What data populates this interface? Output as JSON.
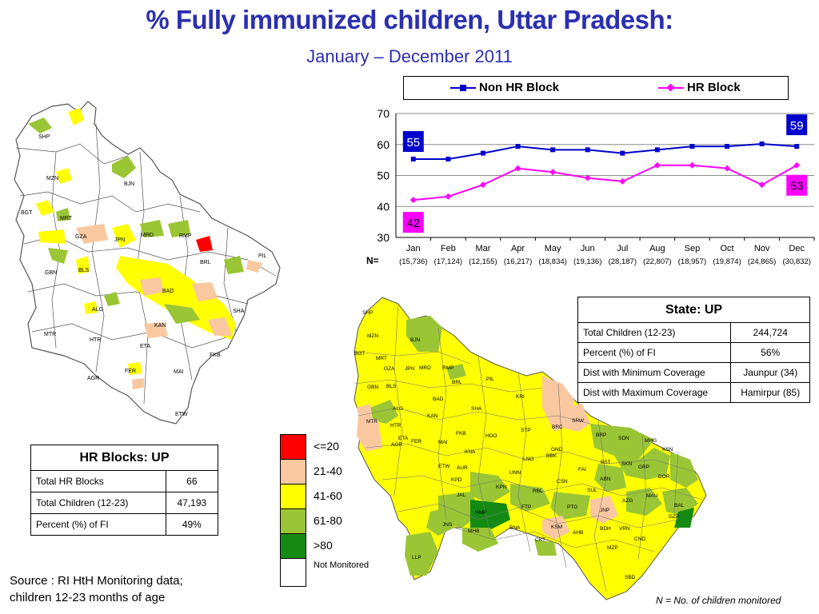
{
  "header": {
    "title": "% Fully immunized children, Uttar Pradesh:",
    "subtitle": "January – December 2011"
  },
  "chart_data": {
    "type": "line",
    "categories": [
      "Jan",
      "Feb",
      "Mar",
      "Apr",
      "May",
      "Jun",
      "Jul",
      "Aug",
      "Sep",
      "Oct",
      "Nov",
      "Dec"
    ],
    "series": [
      {
        "name": "Non HR Block",
        "color": "#0000cc",
        "values": [
          55.3,
          55.3,
          57.2,
          59.4,
          58.3,
          58.3,
          57.2,
          58.3,
          59.4,
          59.4,
          60.2,
          59.4
        ]
      },
      {
        "name": "HR Block",
        "color": "#ff00ff",
        "values": [
          42.1,
          43.2,
          47.0,
          52.3,
          51.1,
          49.2,
          48.1,
          53.3,
          53.3,
          52.3,
          47.0,
          53.3
        ]
      }
    ],
    "ylim": [
      30,
      70
    ],
    "yticks": [
      "30",
      "40",
      "50",
      "60",
      "70"
    ],
    "grid": true,
    "legend": "top",
    "annotations": {
      "non_hr_first": "55",
      "non_hr_last": "59",
      "hr_first": "42",
      "hr_last": "53"
    },
    "n_label": "N=",
    "n_values": [
      "(15,736)",
      "(17,124)",
      "(12,155)",
      "(16,217)",
      "(18,834)",
      "(19,136)",
      "(28,187)",
      "(22,807)",
      "(18,957)",
      "(19,874)",
      "(24,865)",
      "(30,832)"
    ]
  },
  "state_table": {
    "title": "State: UP",
    "rows": [
      {
        "label": "Total Children (12-23)",
        "value": "244,724"
      },
      {
        "label": "Percent (%) of  FI",
        "value": "56%"
      },
      {
        "label": "Dist with Minimum Coverage",
        "value": "Jaunpur (34)"
      },
      {
        "label": "Dist with Maximum Coverage",
        "value": "Hamirpur (85)"
      }
    ]
  },
  "hr_table": {
    "title": "HR Blocks: UP",
    "rows": [
      {
        "label": "Total HR Blocks",
        "value": "66"
      },
      {
        "label": "Total Children (12-23)",
        "value": "47,193"
      },
      {
        "label": "Percent (%) of  FI",
        "value": "49%"
      }
    ]
  },
  "color_scale": [
    {
      "label": "<=20",
      "color": "#ff0000"
    },
    {
      "label": "21-40",
      "color": "#f9c8a0"
    },
    {
      "label": "41-60",
      "color": "#ffff00"
    },
    {
      "label": "61-80",
      "color": "#9ac534"
    },
    {
      "label": ">80",
      "color": "#138a13"
    },
    {
      "label": "Not Monitored",
      "color": "#ffffff"
    }
  ],
  "left_map_labels": [
    "SHP",
    "BJN",
    "MZN",
    "BGT",
    "MRT",
    "GZA",
    "JPN",
    "MRD",
    "RMP",
    "BRL",
    "PIL",
    "GBN",
    "BLS",
    "BAD",
    "SHA",
    "ALG",
    "KAN",
    "ETA",
    "MTR",
    "HTR",
    "FKB",
    "AGR",
    "FER",
    "MAI",
    "ETW"
  ],
  "right_map_labels": [
    "SHP",
    "MZN",
    "BJN",
    "BGT",
    "MRT",
    "GZA",
    "JPN",
    "MRD",
    "RMP",
    "BRL",
    "PIL",
    "GBN",
    "BLS",
    "BAD",
    "KRI",
    "ALG",
    "SHA",
    "KAN",
    "MTR",
    "HTR",
    "SRW",
    "ETA",
    "FKB",
    "HDO",
    "BRC",
    "STP",
    "BRP",
    "SDN",
    "MHG",
    "AGR",
    "FER",
    "MAI",
    "KNA",
    "GND",
    "KSN",
    "ETW",
    "AUR",
    "LNO",
    "BBK",
    "SKN",
    "FAI",
    "BST",
    "GRP",
    "KPD",
    "UNN",
    "DOR",
    "KPN",
    "RBL",
    "CSN",
    "ABN",
    "JAL",
    "SUL",
    "AZG",
    "MAU",
    "HMP",
    "FTP",
    "PTG",
    "JNP",
    "BAL",
    "GZP",
    "JNS",
    "MHB",
    "BNA",
    "KSM",
    "AHB",
    "BDH",
    "VRN",
    "CKT",
    "CND",
    "MZP",
    "LLP",
    "SBD"
  ],
  "source": [
    "Source : RI HtH Monitoring data;",
    "children 12-23 months of age"
  ],
  "n_note": "N = No. of children monitored"
}
